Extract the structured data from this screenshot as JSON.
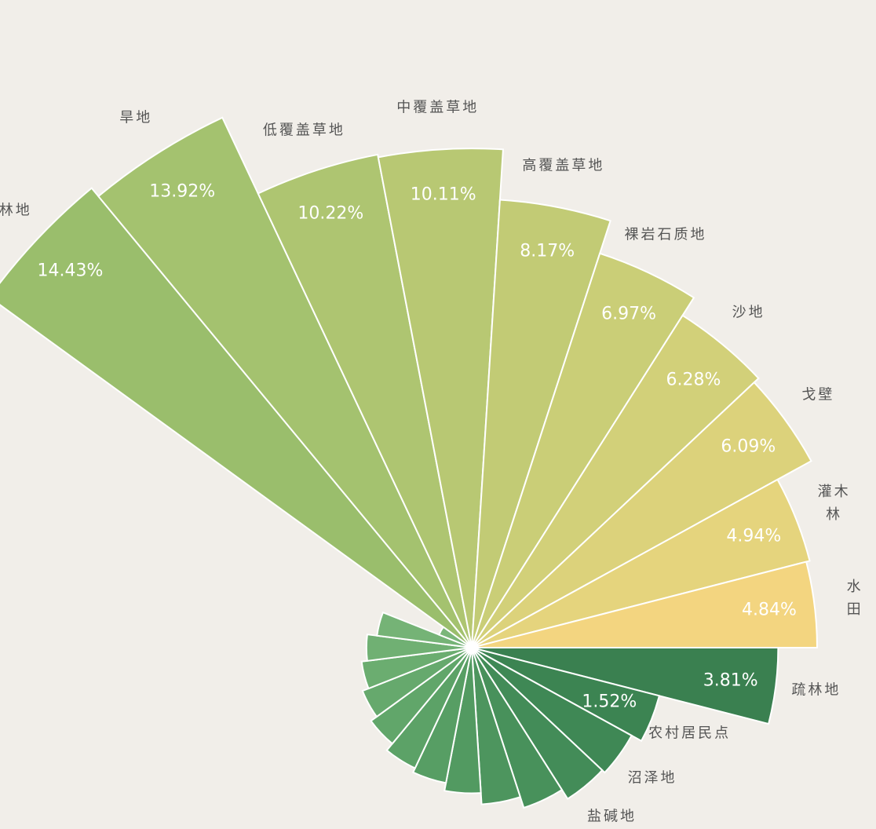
{
  "chart_data": {
    "type": "rose",
    "categories": [
      "有林地",
      "旱地",
      "低覆盖草地",
      "中覆盖草地",
      "高覆盖草地",
      "裸岩石质地",
      "沙地",
      "戈壁",
      "灌木林",
      "水田",
      "疏林地",
      "农村居民点",
      "沼泽地",
      "盐碱地",
      null,
      null,
      null,
      null,
      null,
      null,
      null,
      null,
      null,
      null,
      null
    ],
    "values": [
      14.43,
      13.92,
      10.22,
      10.11,
      8.17,
      6.97,
      6.28,
      6.09,
      4.94,
      4.84,
      3.81,
      1.52,
      1.35,
      1.3,
      1.15,
      1.0,
      0.86,
      0.77,
      0.72,
      0.63,
      0.56,
      0.5,
      0.45,
      0.37,
      0.05
    ],
    "value_labels": [
      "14.43%",
      "13.92%",
      "10.22%",
      "10.11%",
      "8.17%",
      "6.97%",
      "6.28%",
      "6.09%",
      "4.94%",
      "4.84%",
      "3.81%",
      "1.52%",
      null,
      null,
      null,
      null,
      null,
      null,
      null,
      null,
      null,
      null,
      null,
      null,
      null
    ],
    "colors": [
      "#9abe6c",
      "#a4c26f",
      "#aec571",
      "#b8c873",
      "#c2cb75",
      "#cace77",
      "#d2d079",
      "#dcd27b",
      "#e5d47d",
      "#f3d580",
      "#3a8050",
      "#3c8452",
      "#3f8855",
      "#438c58",
      "#48915b",
      "#4d955e",
      "#529a61",
      "#579e64",
      "#5ca267",
      "#61a66a",
      "#66a96d",
      "#6bad70",
      "#70b073",
      "#75b376",
      "#7ab679"
    ]
  }
}
